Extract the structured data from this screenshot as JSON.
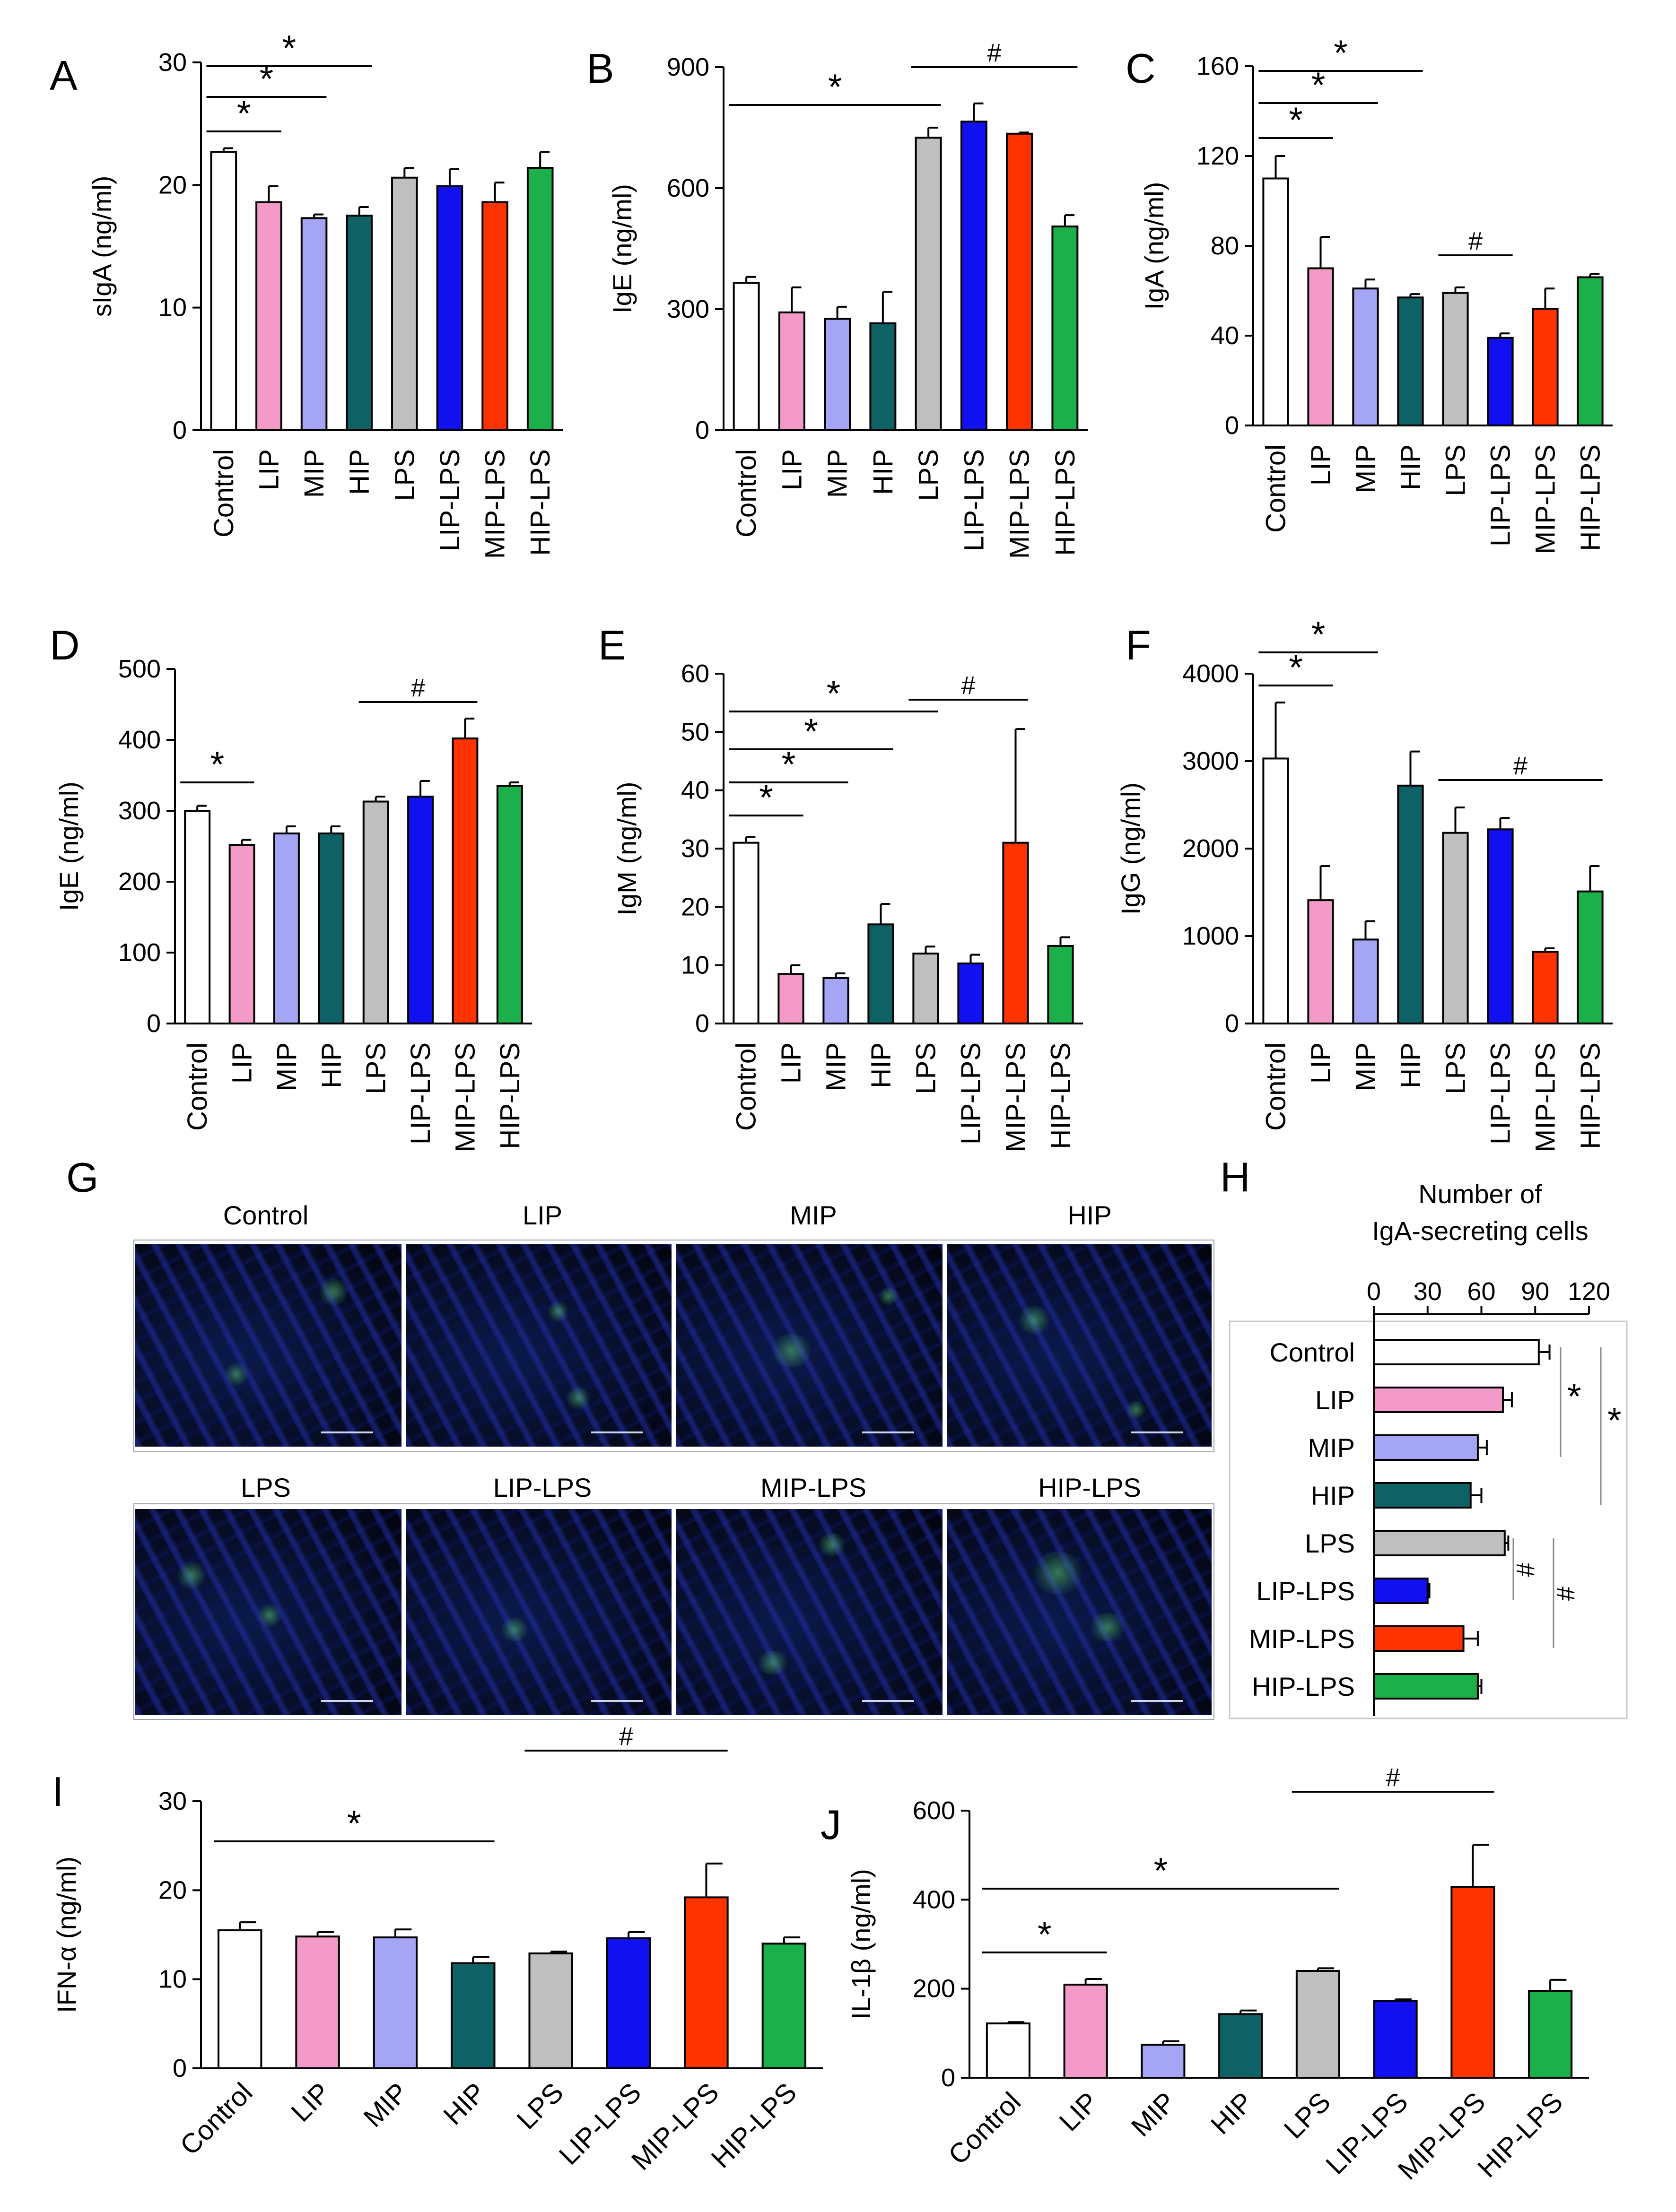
{
  "panels": [
    {
      "letter": "A",
      "chart_data": {
        "type": "bar",
        "ylabel": "sIgA (ng/ml)",
        "ylim": [
          0,
          30
        ],
        "yticks": [
          0,
          10,
          20,
          30
        ],
        "categories": [
          "Control",
          "LIP",
          "MIP",
          "HIP",
          "LPS",
          "LIP-LPS",
          "MIP-LPS",
          "HIP-LPS"
        ],
        "values": [
          22.7,
          18.6,
          17.3,
          17.5,
          20.6,
          19.9,
          18.6,
          21.4
        ],
        "errors": [
          0.3,
          1.3,
          0.3,
          0.7,
          0.8,
          1.4,
          1.6,
          1.3
        ],
        "significance": [
          {
            "from": "Control",
            "to": "LIP",
            "label": "*"
          },
          {
            "from": "Control",
            "to": "MIP",
            "label": "*"
          },
          {
            "from": "Control",
            "to": "HIP",
            "label": "*"
          }
        ]
      }
    },
    {
      "letter": "B",
      "chart_data": {
        "type": "bar",
        "ylabel": "IgE (ng/ml)",
        "ylim": [
          0,
          900
        ],
        "yticks": [
          0,
          300,
          600,
          900
        ],
        "categories": [
          "Control",
          "LIP",
          "MIP",
          "HIP",
          "LPS",
          "LIP-LPS",
          "MIP-LPS",
          "HIP-LPS"
        ],
        "values": [
          365,
          292,
          276,
          265,
          725,
          765,
          735,
          505
        ],
        "errors": [
          15,
          62,
          30,
          78,
          25,
          45,
          3,
          28
        ],
        "significance": [
          {
            "from": "Control",
            "to": "LPS",
            "label": "*"
          },
          {
            "from": "LPS",
            "to": "HIP-LPS",
            "label": "#"
          }
        ]
      }
    },
    {
      "letter": "C",
      "chart_data": {
        "type": "bar",
        "ylabel": "IgA (ng/ml)",
        "ylim": [
          0,
          160
        ],
        "yticks": [
          0,
          40,
          80,
          120,
          160
        ],
        "categories": [
          "Control",
          "LIP",
          "MIP",
          "HIP",
          "LPS",
          "LIP-LPS",
          "MIP-LPS",
          "HIP-LPS"
        ],
        "values": [
          110,
          70,
          61,
          57,
          59,
          39,
          52,
          66
        ],
        "errors": [
          10,
          14,
          4,
          1.5,
          2.5,
          2,
          9,
          1.5
        ],
        "significance": [
          {
            "from": "Control",
            "to": "LIP",
            "label": "*"
          },
          {
            "from": "Control",
            "to": "MIP",
            "label": "*"
          },
          {
            "from": "Control",
            "to": "HIP",
            "label": "*"
          },
          {
            "from": "LPS",
            "to": "LIP-LPS",
            "label": "#"
          }
        ]
      }
    },
    {
      "letter": "D",
      "chart_data": {
        "type": "bar",
        "ylabel": "IgE (ng/ml)",
        "ylim": [
          0,
          500
        ],
        "yticks": [
          0,
          100,
          200,
          300,
          400,
          500
        ],
        "categories": [
          "Control",
          "LIP",
          "MIP",
          "HIP",
          "LPS",
          "LIP-LPS",
          "MIP-LPS",
          "HIP-LPS"
        ],
        "values": [
          300,
          252,
          268,
          268,
          313,
          320,
          402,
          335
        ],
        "errors": [
          7,
          7,
          10,
          10,
          7,
          22,
          28,
          5
        ],
        "significance": [
          {
            "from": "Control",
            "to": "LIP",
            "label": "*"
          },
          {
            "from": "LPS",
            "to": "MIP-LPS",
            "label": "#"
          }
        ]
      }
    },
    {
      "letter": "E",
      "chart_data": {
        "type": "bar",
        "ylabel": "IgM (ng/ml)",
        "ylim": [
          0,
          60
        ],
        "yticks": [
          0,
          10,
          20,
          30,
          40,
          50,
          60
        ],
        "categories": [
          "Control",
          "LIP",
          "MIP",
          "HIP",
          "LPS",
          "LIP-LPS",
          "MIP-LPS",
          "HIP-LPS"
        ],
        "values": [
          31,
          8.5,
          7.8,
          17,
          12,
          10.3,
          31,
          13.3
        ],
        "errors": [
          1,
          1.5,
          0.8,
          3.5,
          1.2,
          1.5,
          19.5,
          1.5
        ],
        "significance": [
          {
            "from": "Control",
            "to": "LIP",
            "label": "*"
          },
          {
            "from": "Control",
            "to": "MIP",
            "label": "*"
          },
          {
            "from": "Control",
            "to": "HIP",
            "label": "*"
          },
          {
            "from": "Control",
            "to": "LPS",
            "label": "*"
          },
          {
            "from": "LPS",
            "to": "MIP-LPS",
            "label": "#"
          }
        ]
      }
    },
    {
      "letter": "F",
      "chart_data": {
        "type": "bar",
        "ylabel": "IgG (ng/ml)",
        "ylim": [
          0,
          4000
        ],
        "yticks": [
          0,
          1000,
          2000,
          3000,
          4000
        ],
        "categories": [
          "Control",
          "LIP",
          "MIP",
          "HIP",
          "LPS",
          "LIP-LPS",
          "MIP-LPS",
          "HIP-LPS"
        ],
        "values": [
          3030,
          1410,
          960,
          2720,
          2180,
          2220,
          820,
          1510
        ],
        "errors": [
          640,
          390,
          210,
          390,
          290,
          130,
          40,
          290
        ],
        "significance": [
          {
            "from": "Control",
            "to": "LIP",
            "label": "*"
          },
          {
            "from": "Control",
            "to": "MIP",
            "label": "*"
          },
          {
            "from": "LPS",
            "to": "HIP-LPS",
            "label": "#"
          }
        ]
      }
    },
    {
      "letter": "H",
      "chart_data": {
        "type": "bar",
        "orientation": "horizontal",
        "title": "Number of IgA-secreting cells",
        "title_lines": [
          "Number of",
          "IgA-secreting cells"
        ],
        "xlim": [
          0,
          120
        ],
        "xticks": [
          0,
          30,
          60,
          90,
          120
        ],
        "categories": [
          "Control",
          "LIP",
          "MIP",
          "HIP",
          "LPS",
          "LIP-LPS",
          "MIP-LPS",
          "HIP-LPS"
        ],
        "values": [
          92,
          72,
          58,
          54,
          73,
          30,
          50,
          58
        ],
        "errors": [
          6,
          5,
          5,
          6,
          2,
          1,
          8,
          2
        ],
        "significance": [
          {
            "from": "Control",
            "to": "MIP",
            "label": "*"
          },
          {
            "from": "Control",
            "to": "HIP",
            "label": "*"
          },
          {
            "from": "LPS",
            "to": "LIP-LPS",
            "label": "#"
          },
          {
            "from": "LPS",
            "to": "MIP-LPS",
            "label": "#"
          }
        ]
      }
    },
    {
      "letter": "I",
      "chart_data": {
        "type": "bar",
        "ylabel": "IFN-α (ng/ml)",
        "ylim": [
          0,
          30
        ],
        "yticks": [
          0,
          10,
          20,
          30
        ],
        "categories": [
          "Control",
          "LIP",
          "MIP",
          "HIP",
          "LPS",
          "LIP-LPS",
          "MIP-LPS",
          "HIP-LPS"
        ],
        "values": [
          15.5,
          14.8,
          14.7,
          11.8,
          12.9,
          14.6,
          19.2,
          14
        ],
        "errors": [
          0.9,
          0.5,
          0.9,
          0.7,
          0.2,
          0.7,
          3.8,
          0.7
        ],
        "significance": [
          {
            "from": "Control",
            "to": "HIP",
            "label": "*"
          },
          {
            "from": "LPS",
            "to": "MIP-LPS",
            "label": "#"
          }
        ]
      }
    },
    {
      "letter": "J",
      "chart_data": {
        "type": "bar",
        "ylabel": "IL-1β (ng/ml)",
        "ylim": [
          0,
          600
        ],
        "yticks": [
          0,
          200,
          400,
          600
        ],
        "categories": [
          "Control",
          "LIP",
          "MIP",
          "HIP",
          "LPS",
          "LIP-LPS",
          "MIP-LPS",
          "HIP-LPS"
        ],
        "values": [
          122,
          209,
          74,
          143,
          240,
          173,
          428,
          195
        ],
        "errors": [
          3,
          13,
          8,
          8,
          6,
          3,
          95,
          25
        ],
        "significance": [
          {
            "from": "Control",
            "to": "LIP",
            "label": "*"
          },
          {
            "from": "Control",
            "to": "LPS",
            "label": "*"
          },
          {
            "from": "LPS",
            "to": "MIP-LPS",
            "label": "#"
          }
        ]
      }
    }
  ],
  "colors": {
    "Control": "#ffffff",
    "LIP": "#f49ac8",
    "MIP": "#a5a5f5",
    "HIP": "#0e6266",
    "LPS": "#bfbfbf",
    "LIP-LPS": "#1010f0",
    "MIP-LPS": "#ff3300",
    "HIP-LPS": "#1bb04a"
  },
  "micrographs": {
    "letter": "G",
    "labels": [
      "Control",
      "LIP",
      "MIP",
      "HIP",
      "LPS",
      "LIP-LPS",
      "MIP-LPS",
      "HIP-LPS"
    ]
  }
}
